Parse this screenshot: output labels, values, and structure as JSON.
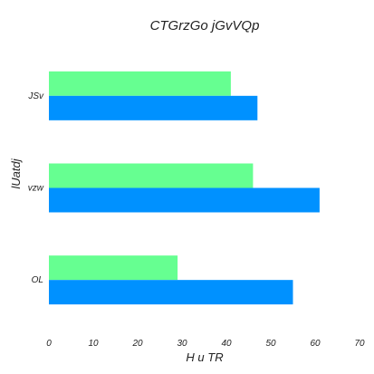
{
  "chart_data": {
    "type": "bar",
    "orientation": "horizontal",
    "title": "CTGrzGo jGvVQp",
    "xlabel": "H u TR",
    "ylabel": "lUatdj",
    "categories": [
      "OL",
      "vzw",
      "JSv"
    ],
    "category_label_sizes": [
      "normal",
      "small",
      "normal"
    ],
    "xlim": [
      0,
      70
    ],
    "xticks": [
      0,
      10,
      20,
      30,
      40,
      50,
      60,
      70
    ],
    "grid": false,
    "legend": "none",
    "series": [
      {
        "values": [
          29,
          46,
          41
        ],
        "color": "#66ff91"
      },
      {
        "values": [
          55,
          61,
          47
        ],
        "color": "#0091ff"
      }
    ]
  }
}
